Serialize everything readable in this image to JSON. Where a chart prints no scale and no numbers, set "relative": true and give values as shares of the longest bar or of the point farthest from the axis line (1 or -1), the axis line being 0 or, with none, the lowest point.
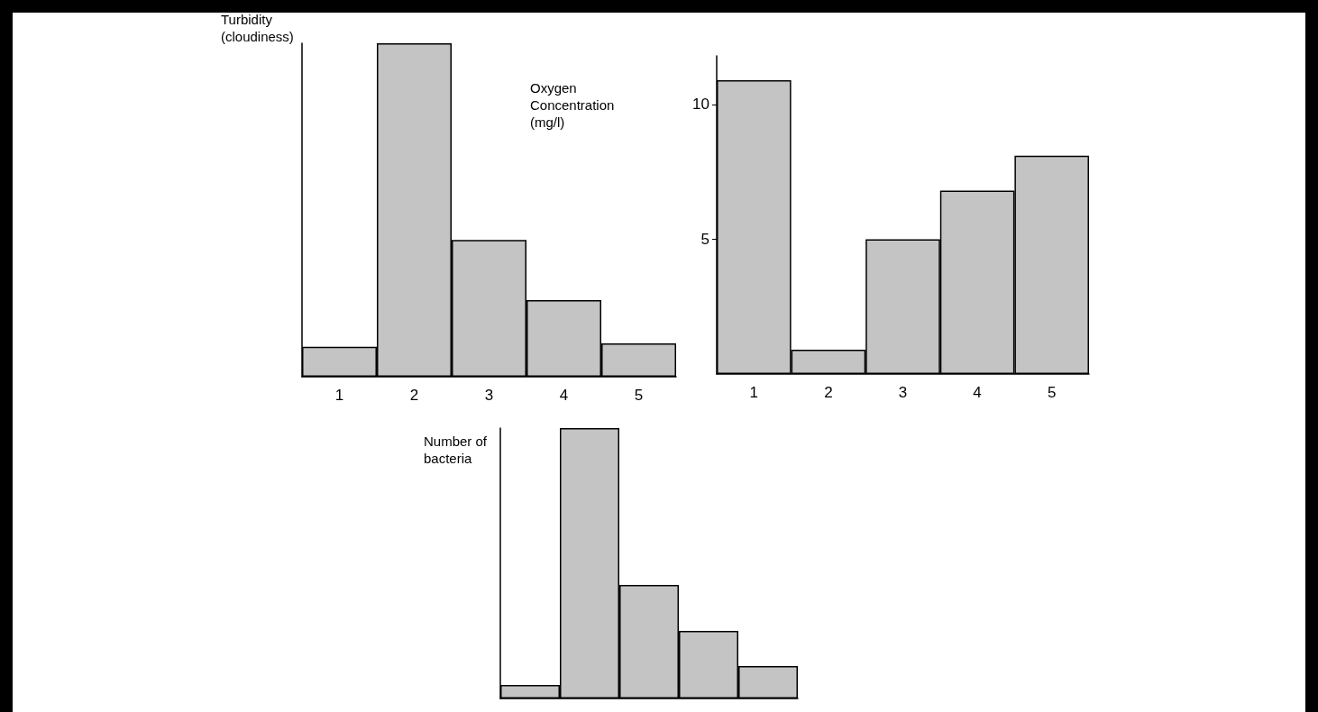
{
  "chart_data": [
    {
      "type": "bar",
      "ylabel": "Turbidity\n(cloudiness)",
      "categories": [
        "1",
        "2",
        "3",
        "4",
        "5"
      ],
      "relative": true,
      "color": "#c4c4c4",
      "values": [
        0.09,
        1,
        0.41,
        0.23,
        0.1
      ],
      "tick_labels": "x",
      "grid": false
    },
    {
      "type": "bar",
      "ylabel": "Oxygen\nConcentration\n(mg/l)",
      "categories": [
        "1",
        "2",
        "3",
        "4",
        "5"
      ],
      "color": "#c4c4c4",
      "values": [
        10.9,
        0.9,
        5.0,
        6.8,
        8.1
      ],
      "ylim": [
        0,
        11.8
      ],
      "yticks": [
        5,
        10
      ],
      "grid": false
    },
    {
      "type": "bar",
      "ylabel": "Number of\nbacteria",
      "categories": [
        null,
        null,
        null,
        null,
        null
      ],
      "relative": true,
      "color": "#c4c4c4",
      "values": [
        0.05,
        1,
        0.42,
        0.25,
        0.12
      ],
      "tick_labels": false,
      "grid": false
    }
  ]
}
